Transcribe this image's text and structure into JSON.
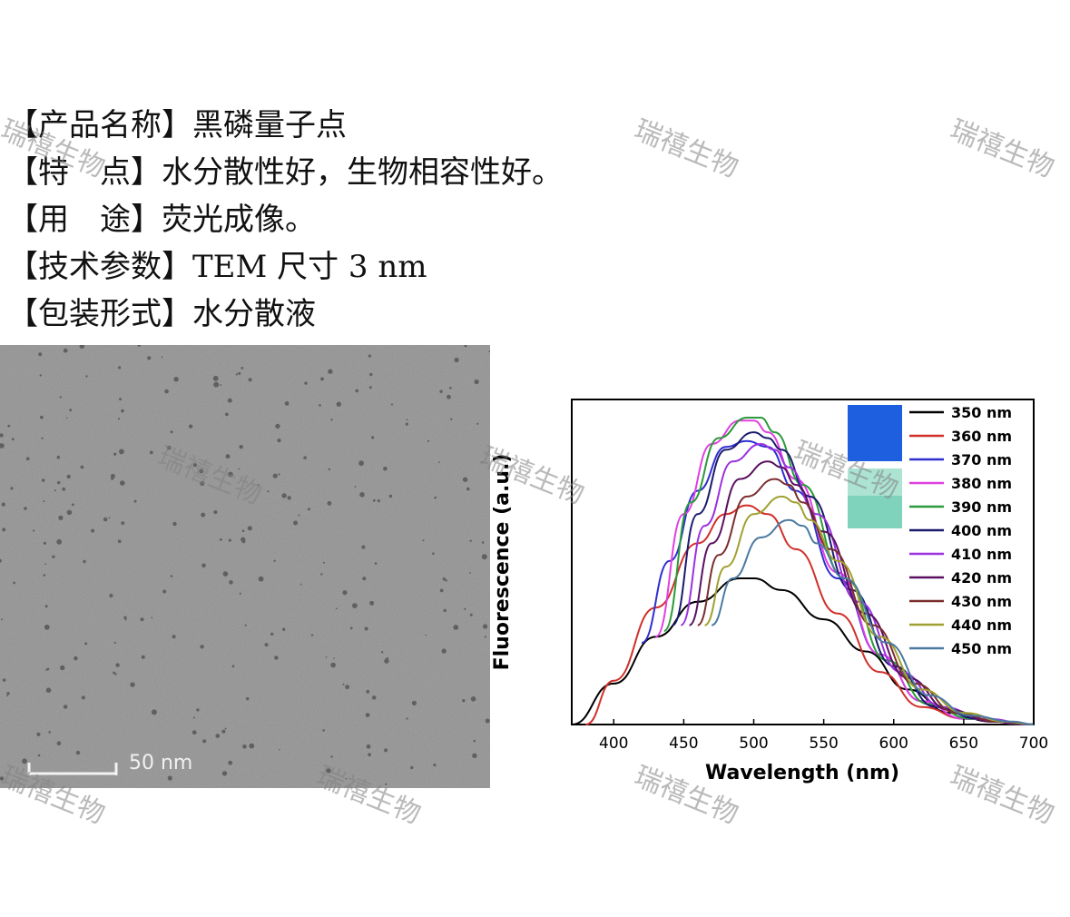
{
  "product": {
    "rows": [
      {
        "key": "【产品名称】",
        "value": "黑磷量子点"
      },
      {
        "key": "【特　点】",
        "value": "水分散性好，生物相容性好。"
      },
      {
        "key": "【用　途】",
        "value": "荧光成像。"
      },
      {
        "key": "【技术参数】",
        "value": "TEM 尺寸 3 nm"
      },
      {
        "key": "【包装形式】",
        "value": "水分散液"
      }
    ]
  },
  "tem": {
    "scalebar_label": "50 nm"
  },
  "watermark_text": "瑞禧生物",
  "chart_data": {
    "type": "line",
    "xlabel": "Wavelength (nm)",
    "ylabel": "Fluorescence (a.u.)",
    "xlim": [
      370,
      700
    ],
    "ylim": [
      0,
      1.05
    ],
    "xticks": [
      400,
      450,
      500,
      550,
      600,
      650,
      700
    ],
    "y_tick_labels": false,
    "legend_position": "top-right",
    "inset_images": [
      "blue vial under UV light",
      "pale green vial under daylight"
    ],
    "series": [
      {
        "name": "350 nm",
        "color": "#000000",
        "x": [
          370,
          400,
          430,
          460,
          490,
          500,
          520,
          550,
          580,
          610,
          640,
          670,
          700
        ],
        "values": [
          0.0,
          0.14,
          0.3,
          0.42,
          0.5,
          0.5,
          0.46,
          0.36,
          0.25,
          0.12,
          0.04,
          0.01,
          0.0
        ]
      },
      {
        "name": "360 nm",
        "color": "#d0302a",
        "x": [
          380,
          400,
          430,
          460,
          480,
          495,
          510,
          530,
          560,
          590,
          620,
          650,
          700
        ],
        "values": [
          0.0,
          0.15,
          0.4,
          0.62,
          0.72,
          0.75,
          0.72,
          0.6,
          0.38,
          0.18,
          0.06,
          0.02,
          0.0
        ]
      },
      {
        "name": "370 nm",
        "color": "#2f2fd0",
        "x": [
          420,
          440,
          460,
          480,
          495,
          510,
          530,
          560,
          590,
          620,
          650,
          700
        ],
        "values": [
          0.28,
          0.56,
          0.8,
          0.95,
          0.97,
          0.95,
          0.8,
          0.5,
          0.24,
          0.08,
          0.02,
          0.0
        ]
      },
      {
        "name": "380 nm",
        "color": "#e040e0",
        "x": [
          430,
          450,
          470,
          490,
          500,
          510,
          530,
          560,
          590,
          620,
          650,
          700
        ],
        "values": [
          0.3,
          0.72,
          0.96,
          1.04,
          1.04,
          1.0,
          0.84,
          0.52,
          0.24,
          0.08,
          0.02,
          0.0
        ]
      },
      {
        "name": "390 nm",
        "color": "#2a9a3a",
        "x": [
          436,
          455,
          475,
          495,
          505,
          515,
          535,
          565,
          595,
          625,
          655,
          700
        ],
        "values": [
          0.32,
          0.76,
          0.98,
          1.05,
          1.05,
          1.0,
          0.82,
          0.5,
          0.22,
          0.07,
          0.02,
          0.0
        ]
      },
      {
        "name": "400 nm",
        "color": "#1a1a6e",
        "x": [
          442,
          460,
          480,
          500,
          510,
          520,
          540,
          570,
          600,
          630,
          660,
          700
        ],
        "values": [
          0.34,
          0.72,
          0.94,
          1.0,
          0.98,
          0.94,
          0.78,
          0.46,
          0.2,
          0.06,
          0.02,
          0.0
        ]
      },
      {
        "name": "410 nm",
        "color": "#9b30e0",
        "x": [
          448,
          465,
          485,
          505,
          515,
          525,
          545,
          575,
          605,
          635,
          665,
          700
        ],
        "values": [
          0.34,
          0.68,
          0.9,
          0.96,
          0.94,
          0.88,
          0.72,
          0.42,
          0.18,
          0.06,
          0.02,
          0.0
        ]
      },
      {
        "name": "420 nm",
        "color": "#5a1060",
        "x": [
          454,
          470,
          490,
          510,
          520,
          530,
          550,
          580,
          610,
          640,
          670,
          700
        ],
        "values": [
          0.34,
          0.62,
          0.84,
          0.9,
          0.88,
          0.82,
          0.66,
          0.38,
          0.16,
          0.05,
          0.01,
          0.0
        ]
      },
      {
        "name": "430 nm",
        "color": "#7a2e2e",
        "x": [
          460,
          475,
          495,
          515,
          525,
          535,
          555,
          585,
          615,
          645,
          675,
          700
        ],
        "values": [
          0.34,
          0.58,
          0.78,
          0.84,
          0.82,
          0.76,
          0.6,
          0.34,
          0.14,
          0.04,
          0.01,
          0.0
        ]
      },
      {
        "name": "440 nm",
        "color": "#a0a030",
        "x": [
          465,
          480,
          500,
          520,
          530,
          540,
          560,
          590,
          620,
          650,
          680,
          700
        ],
        "values": [
          0.34,
          0.54,
          0.72,
          0.78,
          0.76,
          0.7,
          0.56,
          0.3,
          0.12,
          0.04,
          0.01,
          0.0
        ]
      },
      {
        "name": "450 nm",
        "color": "#4a7aa0",
        "x": [
          470,
          485,
          505,
          525,
          535,
          545,
          565,
          595,
          625,
          655,
          685,
          700
        ],
        "values": [
          0.34,
          0.5,
          0.64,
          0.7,
          0.68,
          0.62,
          0.5,
          0.28,
          0.1,
          0.03,
          0.01,
          0.0
        ]
      }
    ]
  }
}
